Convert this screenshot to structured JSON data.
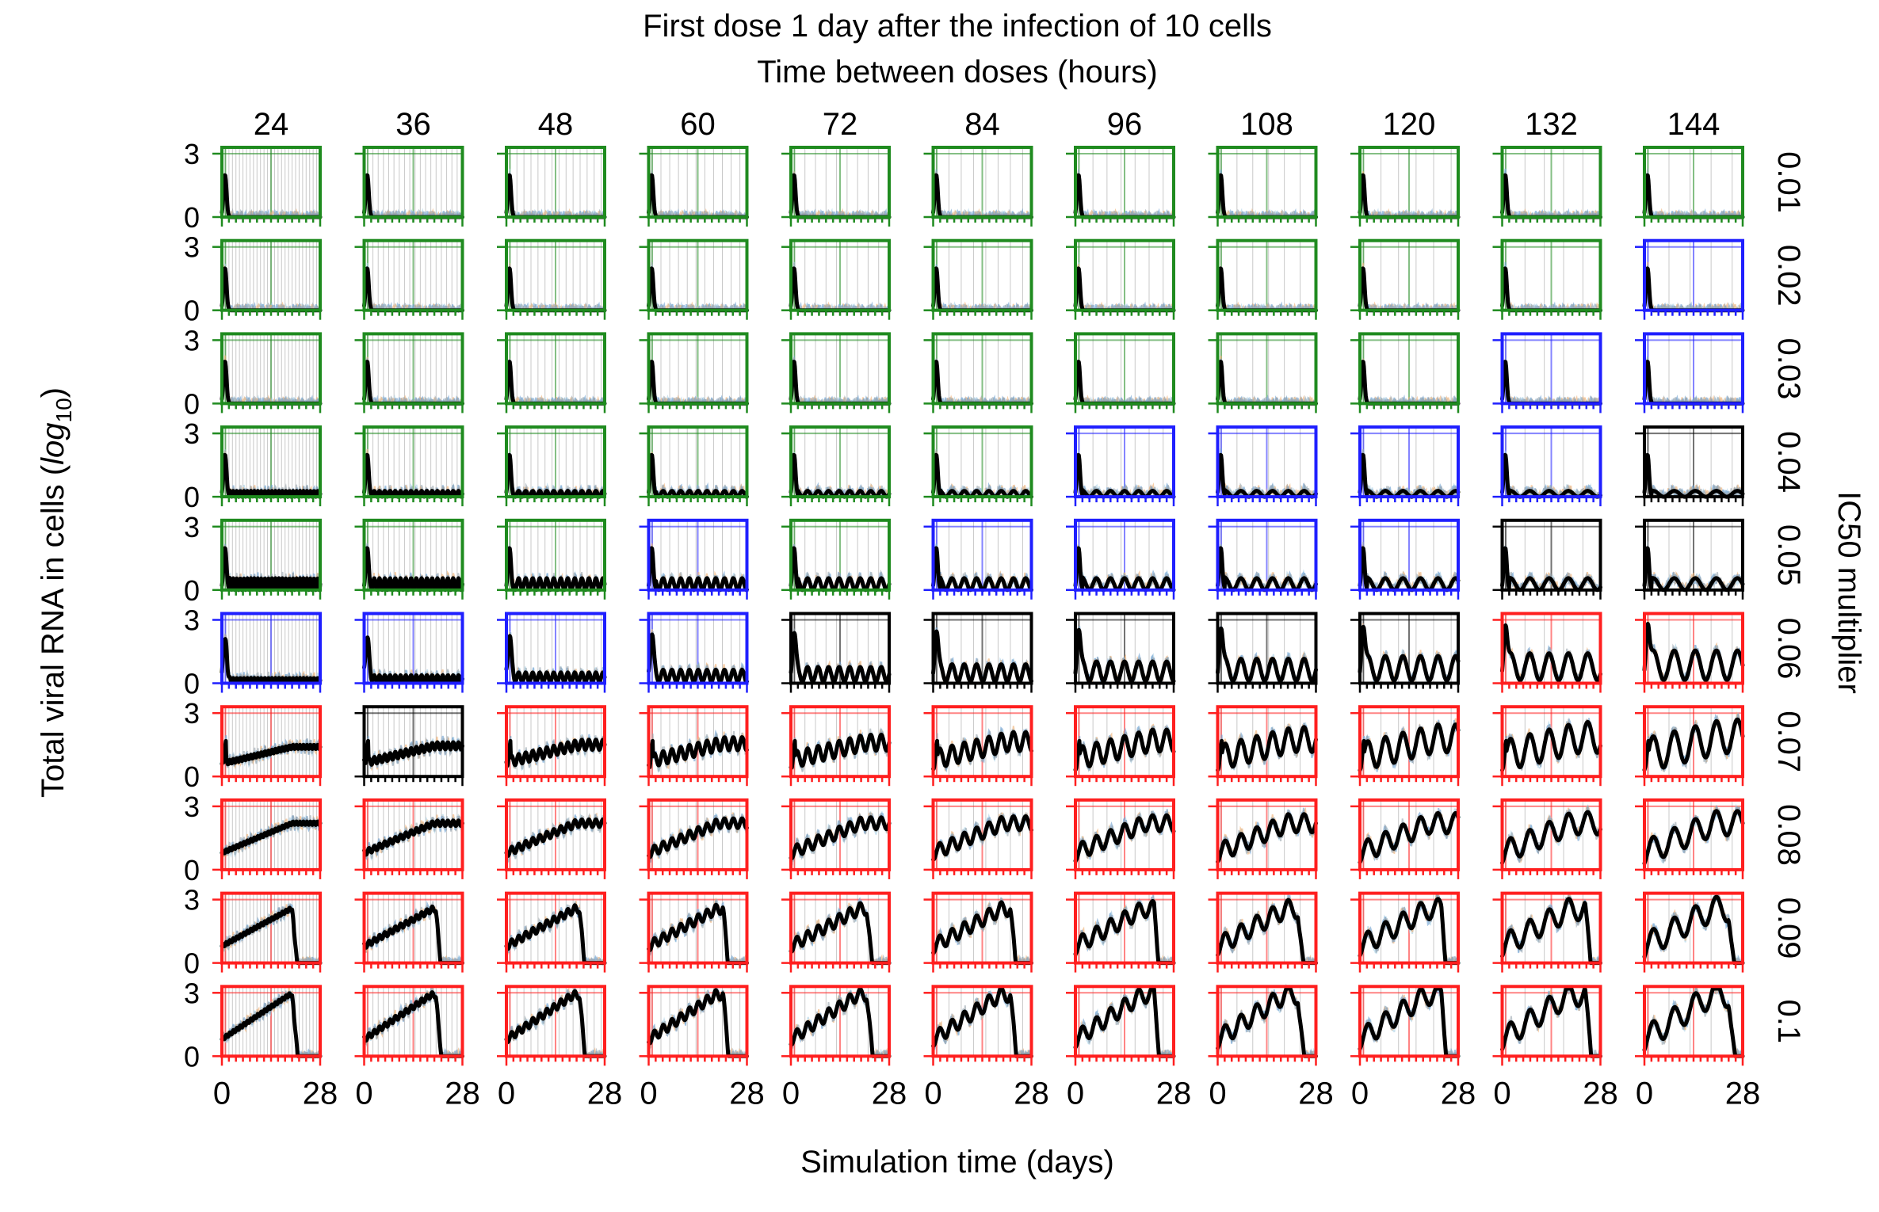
{
  "chart_data": {
    "type": "line",
    "title": "First dose 1 day after the infection of 10 cells",
    "subtitle": "Time between doses (hours)",
    "xlabel": "Simulation time (days)",
    "ylabel_prefix": "Total viral RNA in cells (",
    "ylabel_math": "log",
    "ylabel_sub": "10",
    "ylabel_suffix": ")",
    "row_axis_label": "IC50 multiplier",
    "column_values": [
      "24",
      "36",
      "48",
      "60",
      "72",
      "84",
      "96",
      "108",
      "120",
      "132",
      "144"
    ],
    "row_values": [
      "0.01",
      "0.02",
      "0.03",
      "0.04",
      "0.05",
      "0.06",
      "0.07",
      "0.08",
      "0.09",
      "0.1"
    ],
    "xlim": [
      0,
      28
    ],
    "ylim": [
      0,
      3.3
    ],
    "x_tick_labels": [
      "0",
      "28"
    ],
    "y_tick_labels": [
      "0",
      "3"
    ],
    "y_reference_line": 3,
    "outcome_colors": {
      "green": "#1f8b1f",
      "blue": "#1f1fff",
      "black": "#000000",
      "red": "#ff1f1f"
    },
    "trace_colors": {
      "main": "#000000",
      "band_blue": "#6a9fd0",
      "band_orange": "#f0ad6e",
      "band_grey": "#9aa5ae",
      "band_light": "#a8d0e6"
    },
    "panel_outcomes": [
      [
        "green",
        "green",
        "green",
        "green",
        "green",
        "green",
        "green",
        "green",
        "green",
        "green",
        "green"
      ],
      [
        "green",
        "green",
        "green",
        "green",
        "green",
        "green",
        "green",
        "green",
        "green",
        "green",
        "blue"
      ],
      [
        "green",
        "green",
        "green",
        "green",
        "green",
        "green",
        "green",
        "green",
        "green",
        "blue",
        "blue"
      ],
      [
        "green",
        "green",
        "green",
        "green",
        "green",
        "green",
        "blue",
        "blue",
        "blue",
        "blue",
        "black"
      ],
      [
        "green",
        "green",
        "green",
        "blue",
        "green",
        "blue",
        "blue",
        "blue",
        "blue",
        "black",
        "black"
      ],
      [
        "blue",
        "blue",
        "blue",
        "blue",
        "black",
        "black",
        "black",
        "black",
        "black",
        "red",
        "red"
      ],
      [
        "red",
        "black",
        "red",
        "red",
        "red",
        "red",
        "red",
        "red",
        "red",
        "red",
        "red"
      ],
      [
        "red",
        "red",
        "red",
        "red",
        "red",
        "red",
        "red",
        "red",
        "red",
        "red",
        "red"
      ],
      [
        "red",
        "red",
        "red",
        "red",
        "red",
        "red",
        "red",
        "red",
        "red",
        "red",
        "red"
      ],
      [
        "red",
        "red",
        "red",
        "red",
        "red",
        "red",
        "red",
        "red",
        "red",
        "red",
        "red"
      ]
    ]
  }
}
